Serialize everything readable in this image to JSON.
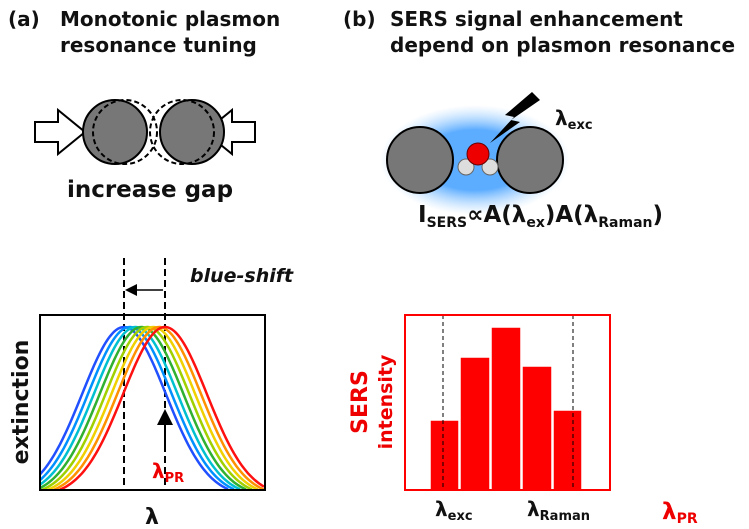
{
  "panel_a": {
    "label": "(a)",
    "title_lines": [
      "Monotonic plasmon",
      "resonance tuning"
    ],
    "caption": "increase gap",
    "shift_label": "blue-shift",
    "y_label": "extinction",
    "peak_label": {
      "symbol": "λ",
      "sub": "PR"
    },
    "x_label": "λ"
  },
  "panel_b": {
    "label": "(b)",
    "title_lines": [
      "SERS signal enhancement",
      "depend on plasmon resonance"
    ],
    "excitation": {
      "symbol": "λ",
      "sub": "exc"
    },
    "formula": {
      "base": "I",
      "base_sub": "SERS",
      "part1": "∝A(λ",
      "sub1": "ex",
      "part2": ")A(λ",
      "sub2": "Raman",
      "part3": ")"
    },
    "y_label_lines": [
      "SERS",
      "intensity"
    ],
    "x_labels": [
      {
        "symbol": "λ",
        "sub": "exc"
      },
      {
        "symbol": "λ",
        "sub": "Raman"
      }
    ],
    "axis_label": {
      "symbol": "λ",
      "sub": "PR"
    }
  }
}
